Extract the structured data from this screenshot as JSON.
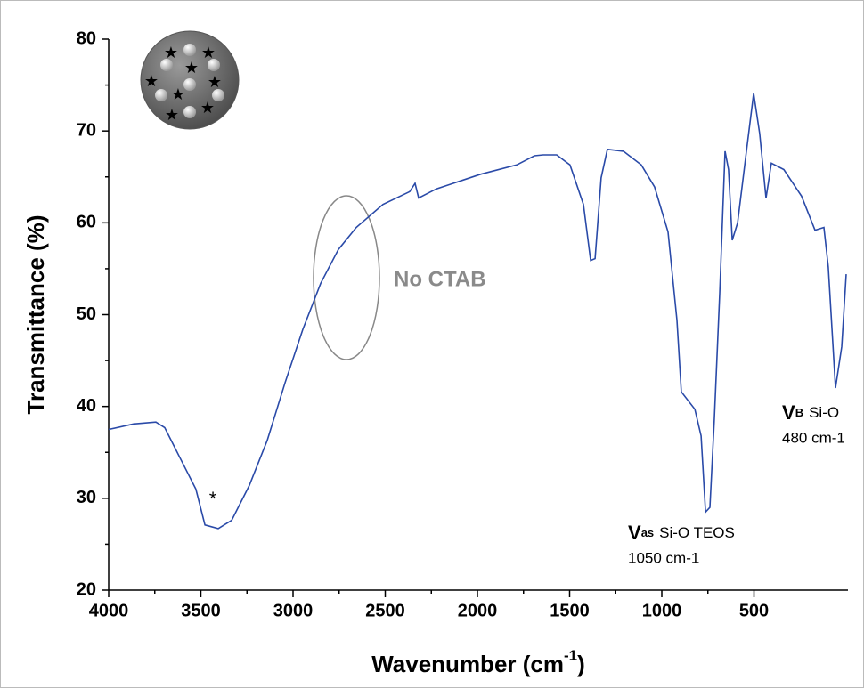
{
  "chart_data": {
    "type": "line",
    "x_label": {
      "text": "Wavenumber (cm",
      "sup": "-1",
      "tail": ")"
    },
    "y_label": "Transmittance (%)",
    "xlim": [
      4000,
      0
    ],
    "ylim": [
      20,
      80
    ],
    "xticks": [
      4000,
      3500,
      3000,
      2500,
      2000,
      1500,
      1000,
      500
    ],
    "yticks": [
      20,
      30,
      40,
      50,
      60,
      70,
      80
    ],
    "xminor": [
      3750,
      3250,
      2750,
      2250,
      1750,
      1250,
      750
    ],
    "yminor": [
      25,
      35,
      45,
      55,
      65,
      75
    ],
    "x": [
      4000,
      3865,
      3744,
      3696,
      3623,
      3527,
      3478,
      3406,
      3333,
      3237,
      3140,
      3043,
      2947,
      2850,
      2754,
      2657,
      2512,
      2367,
      2338,
      2319,
      2222,
      1981,
      1787,
      1691,
      1643,
      1570,
      1498,
      1425,
      1386,
      1362,
      1329,
      1295,
      1208,
      1111,
      1039,
      966,
      918,
      894,
      821,
      787,
      763,
      739,
      715,
      686,
      657,
      638,
      618,
      589,
      541,
      502,
      469,
      435,
      406,
      338,
      242,
      169,
      121,
      97,
      58,
      24,
      0
    ],
    "series": [
      {
        "color": "#2a4aa8",
        "values": [
          37.5,
          38.1,
          38.3,
          37.7,
          34.8,
          31,
          27.1,
          26.7,
          27.6,
          31.4,
          36.3,
          42.6,
          48.4,
          53.4,
          57.1,
          59.5,
          62,
          63.4,
          64.3,
          62.7,
          63.7,
          65.3,
          66.3,
          67.3,
          67.4,
          67.4,
          66.3,
          62,
          55.9,
          56.1,
          64.9,
          68,
          67.8,
          66.3,
          63.9,
          59,
          49.4,
          41.6,
          39.7,
          36.8,
          28.5,
          29,
          38.7,
          52.3,
          67.8,
          65.8,
          58.1,
          60,
          67.8,
          74.1,
          69.7,
          62.7,
          66.5,
          65.8,
          62.9,
          59.2,
          59.5,
          55.2,
          42,
          46.5,
          54.4
        ]
      }
    ],
    "annotations": [
      {
        "text": "No CTAB"
      },
      {
        "text": "*"
      },
      {
        "symbol": "V",
        "sub": "as",
        "text": "Si-O TEOS",
        "line2": "1050 cm-1"
      },
      {
        "symbol": "V",
        "sub": "B",
        "text": "Si-O",
        "line2": "480 cm-1"
      }
    ]
  }
}
